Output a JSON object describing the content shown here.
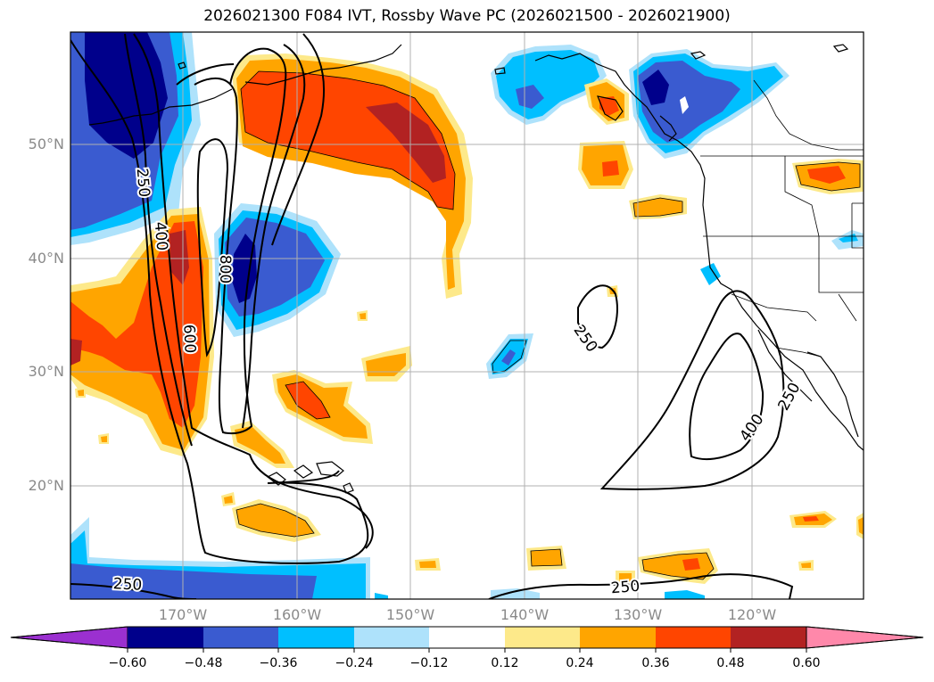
{
  "title": "2026021300 F084 IVT, Rossby Wave PC (2026021500 - 2026021900)",
  "map": {
    "lat_labels": [
      "50°N",
      "40°N",
      "30°N",
      "20°N"
    ],
    "lon_labels": [
      "170°W",
      "160°W",
      "150°W",
      "140°W",
      "130°W",
      "120°W"
    ]
  },
  "contours": {
    "labels": [
      {
        "text": "250",
        "name": "contour-label-250-west"
      },
      {
        "text": "400",
        "name": "contour-label-400-west"
      },
      {
        "text": "600",
        "name": "contour-label-600"
      },
      {
        "text": "800",
        "name": "contour-label-800"
      },
      {
        "text": "250",
        "name": "contour-label-250-central"
      },
      {
        "text": "400",
        "name": "contour-label-400-east"
      },
      {
        "text": "250",
        "name": "contour-label-250-east"
      },
      {
        "text": "250",
        "name": "contour-label-250-southwest"
      },
      {
        "text": "250",
        "name": "contour-label-250-south"
      }
    ]
  },
  "colorbar": {
    "colors": [
      "#9b30d0",
      "#00008b",
      "#3a5bd0",
      "#00bfff",
      "#aee2fb",
      "#ffffff",
      "#fde98a",
      "#ffa500",
      "#ff4500",
      "#b22222",
      "#ff88aa"
    ],
    "tick_labels": [
      "−0.60",
      "−0.48",
      "−0.36",
      "−0.24",
      "−0.12",
      "0.12",
      "0.24",
      "0.36",
      "0.48",
      "0.60"
    ]
  }
}
